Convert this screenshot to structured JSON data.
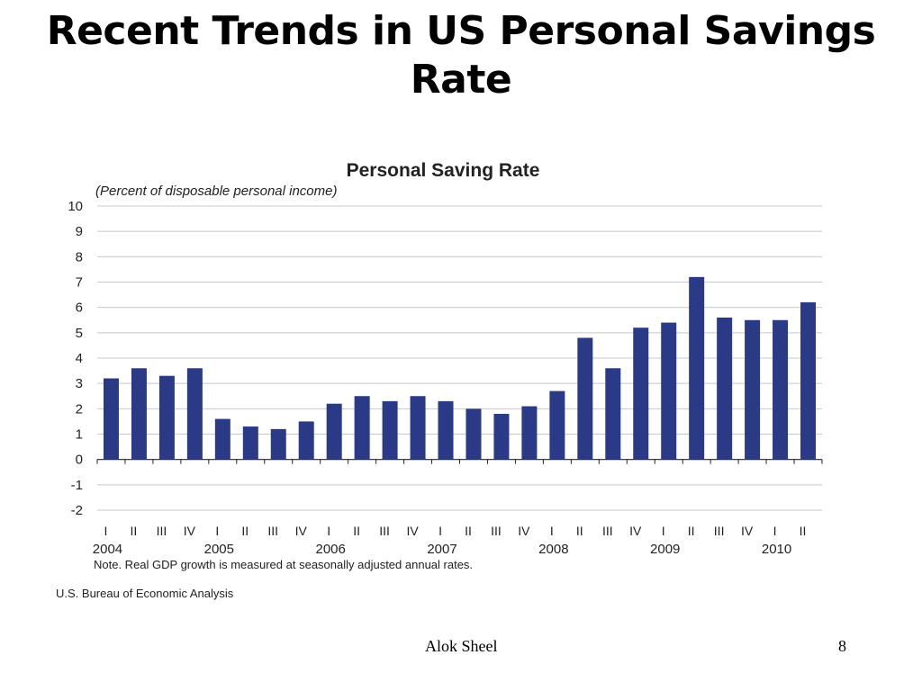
{
  "slide": {
    "title": "Recent Trends in US Personal Savings Rate",
    "author": "Alok Sheel",
    "page_number": "8"
  },
  "chart_data": {
    "type": "bar",
    "title": "Personal Saving Rate",
    "subtitle": "(Percent of disposable personal income)",
    "note": "Note.  Real GDP growth is measured at seasonally adjusted annual rates.",
    "source": "U.S. Bureau of Economic Analysis",
    "bar_color": "#2b3a87",
    "grid": true,
    "ylim": [
      -2,
      10
    ],
    "yticks": [
      10,
      9,
      8,
      7,
      6,
      5,
      4,
      3,
      2,
      1,
      0,
      -1,
      -2
    ],
    "categories": [
      "I",
      "II",
      "III",
      "IV",
      "I",
      "II",
      "III",
      "IV",
      "I",
      "II",
      "III",
      "IV",
      "I",
      "II",
      "III",
      "IV",
      "I",
      "II",
      "III",
      "IV",
      "I",
      "II",
      "III",
      "IV",
      "I",
      "II"
    ],
    "years": [
      "2004",
      "2005",
      "2006",
      "2007",
      "2008",
      "2009",
      "2010"
    ],
    "year_start_index": [
      0,
      4,
      8,
      12,
      16,
      20,
      24
    ],
    "values": [
      3.2,
      3.6,
      3.3,
      3.6,
      1.6,
      1.3,
      1.2,
      1.5,
      2.2,
      2.5,
      2.3,
      2.5,
      2.3,
      2.0,
      1.8,
      2.1,
      2.7,
      4.8,
      3.6,
      5.2,
      5.4,
      7.2,
      5.6,
      5.5,
      5.5,
      6.2
    ]
  }
}
